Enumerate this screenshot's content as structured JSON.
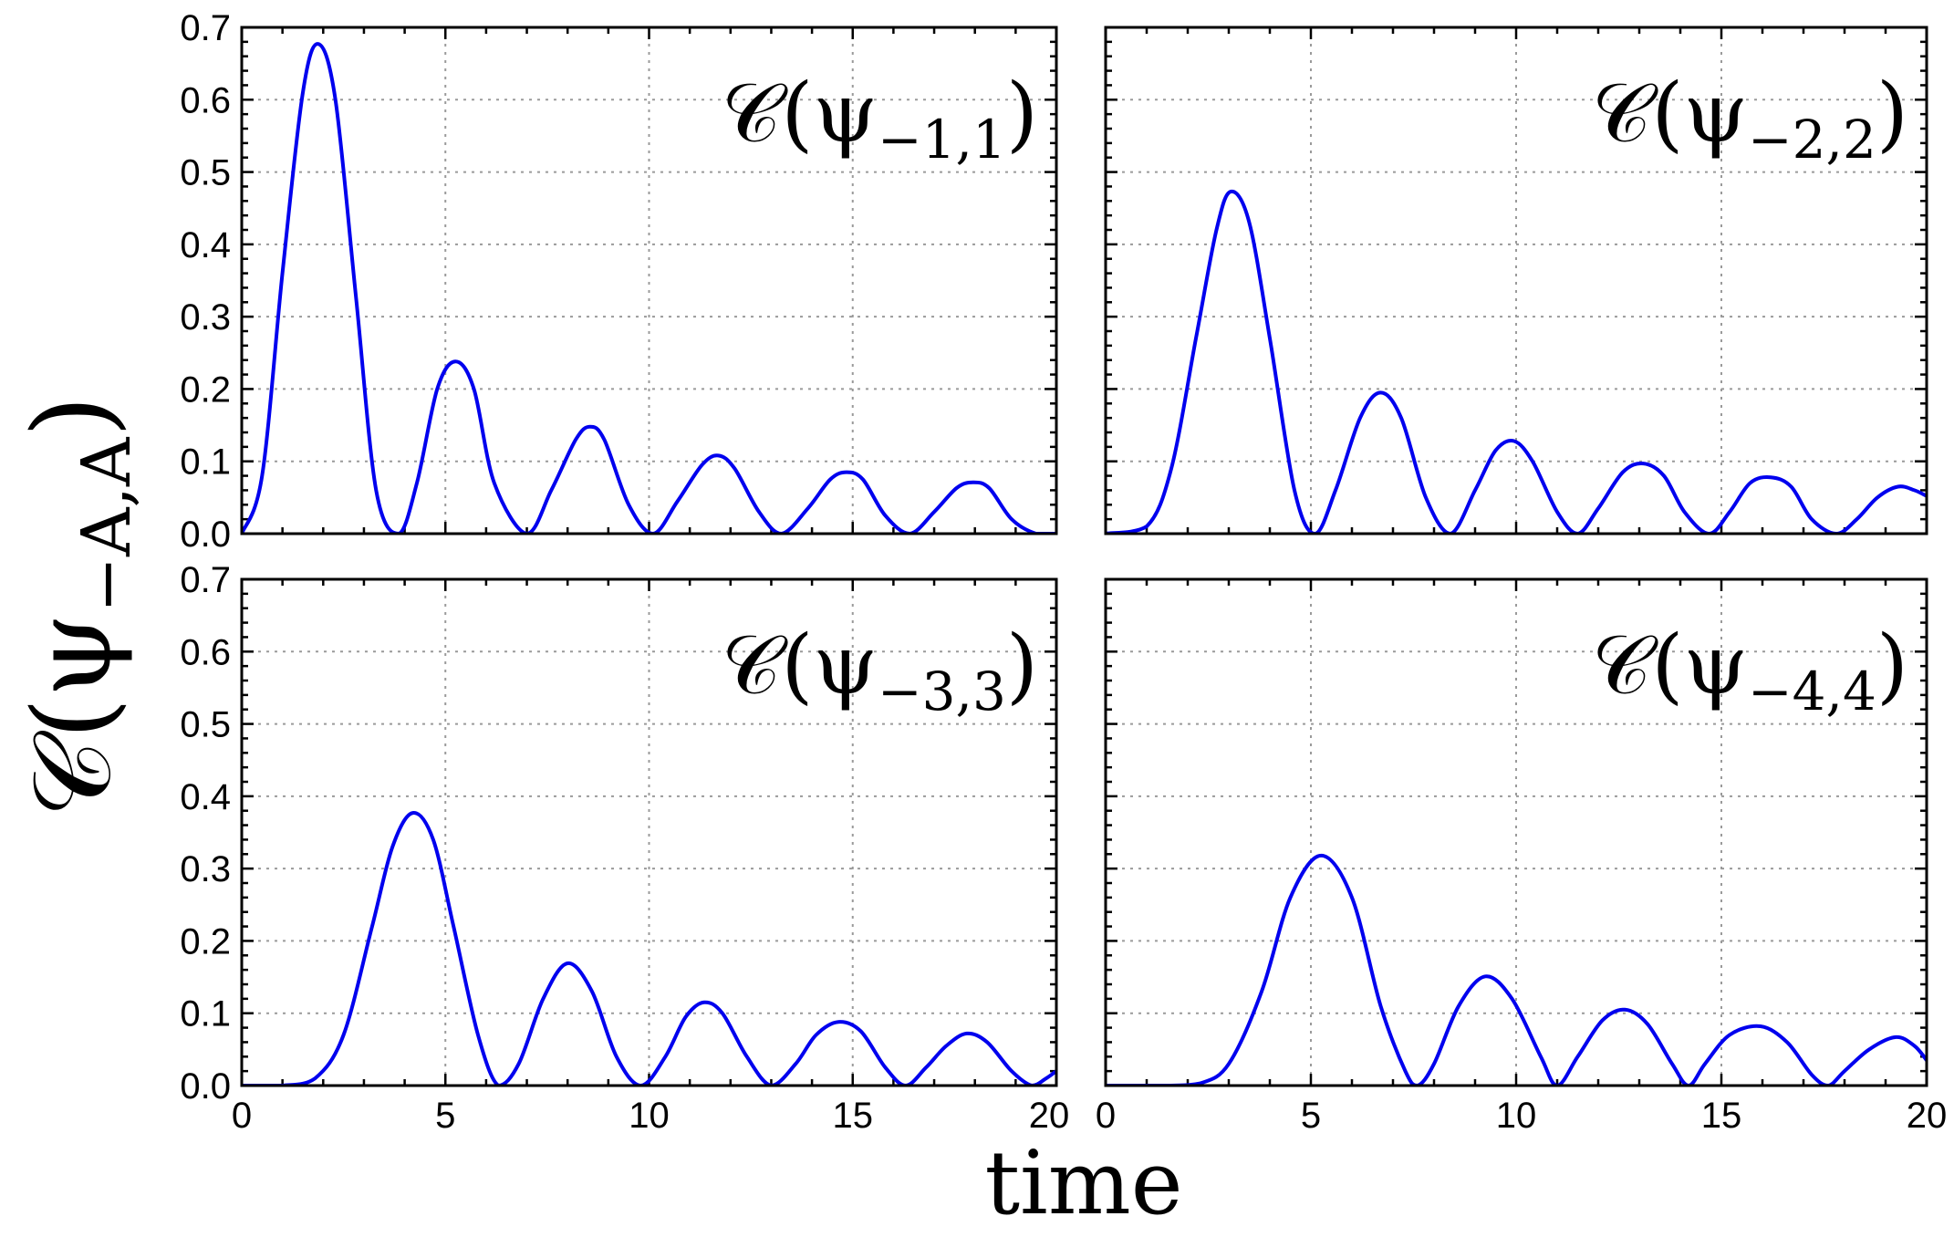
{
  "chart_data": {
    "type": "line",
    "ylabel_main": "𝒞(ψ",
    "ylabel_sub": "−A,A",
    "ylabel_close": ")",
    "xlabel": "time",
    "xlim": [
      0,
      20
    ],
    "ylim": [
      0,
      0.7
    ],
    "x_ticks": [
      0,
      5,
      10,
      15,
      20
    ],
    "x_tick_labels": [
      "0",
      "5",
      "10",
      "15",
      "20"
    ],
    "y_ticks": [
      0,
      0.1,
      0.2,
      0.3,
      0.4,
      0.5,
      0.6,
      0.7
    ],
    "y_tick_labels": [
      "0.0",
      "0.1",
      "0.2",
      "0.3",
      "0.4",
      "0.5",
      "0.6",
      "0.7"
    ],
    "grid": true,
    "series_color": "#0000ee",
    "panels": [
      {
        "label_main": "𝒞(ψ",
        "label_sub": "−1,1",
        "label_close": ")",
        "x": [
          0,
          0.5,
          1.0,
          1.5,
          1.88,
          2.3,
          2.8,
          3.3,
          3.85,
          4.3,
          4.8,
          5.25,
          5.7,
          6.2,
          7.0,
          7.6,
          8.2,
          8.55,
          8.9,
          9.5,
          10.1,
          10.7,
          11.3,
          11.7,
          12.1,
          12.7,
          13.25,
          13.9,
          14.45,
          14.85,
          15.25,
          15.8,
          16.4,
          17.0,
          17.55,
          17.95,
          18.35,
          18.9,
          19.5,
          20.0
        ],
        "values": [
          0,
          0.08,
          0.36,
          0.61,
          0.677,
          0.6,
          0.33,
          0.06,
          0,
          0.07,
          0.2,
          0.238,
          0.2,
          0.07,
          0,
          0.06,
          0.13,
          0.148,
          0.13,
          0.04,
          0,
          0.045,
          0.095,
          0.108,
          0.09,
          0.03,
          0,
          0.035,
          0.075,
          0.085,
          0.075,
          0.025,
          0,
          0.03,
          0.063,
          0.071,
          0.063,
          0.02,
          0,
          0
        ]
      },
      {
        "label_main": "𝒞(ψ",
        "label_sub": "−2,2",
        "label_close": ")",
        "x": [
          0,
          1.0,
          1.6,
          2.2,
          2.7,
          3.05,
          3.5,
          4.0,
          4.6,
          5.1,
          5.6,
          6.2,
          6.7,
          7.2,
          7.8,
          8.4,
          9.0,
          9.5,
          9.95,
          10.4,
          11.0,
          11.5,
          12.0,
          12.6,
          13.1,
          13.6,
          14.1,
          14.7,
          15.2,
          15.7,
          16.2,
          16.7,
          17.2,
          17.8,
          18.3,
          18.8,
          19.3,
          19.7,
          20.0
        ],
        "values": [
          0,
          0.01,
          0.09,
          0.27,
          0.42,
          0.473,
          0.43,
          0.27,
          0.06,
          0,
          0.06,
          0.16,
          0.195,
          0.16,
          0.05,
          0,
          0.06,
          0.115,
          0.128,
          0.1,
          0.03,
          0,
          0.035,
          0.085,
          0.097,
          0.08,
          0.03,
          0,
          0.03,
          0.07,
          0.078,
          0.065,
          0.02,
          0,
          0.02,
          0.05,
          0.065,
          0.06,
          0.052
        ]
      },
      {
        "label_main": "𝒞(ψ",
        "label_sub": "−3,3",
        "label_close": ")",
        "x": [
          0,
          1.0,
          1.8,
          2.5,
          3.2,
          3.7,
          4.2,
          4.7,
          5.2,
          5.8,
          6.3,
          6.8,
          7.4,
          8.0,
          8.6,
          9.2,
          9.8,
          10.4,
          10.9,
          11.35,
          11.8,
          12.4,
          13.0,
          13.6,
          14.1,
          14.65,
          15.2,
          15.8,
          16.3,
          16.8,
          17.3,
          17.8,
          18.3,
          18.9,
          19.4,
          19.75,
          20.0
        ],
        "values": [
          0,
          0,
          0.01,
          0.07,
          0.22,
          0.33,
          0.377,
          0.34,
          0.22,
          0.07,
          0,
          0.03,
          0.12,
          0.169,
          0.13,
          0.04,
          0,
          0.04,
          0.095,
          0.115,
          0.1,
          0.04,
          0,
          0.03,
          0.07,
          0.088,
          0.075,
          0.025,
          0,
          0.025,
          0.055,
          0.072,
          0.06,
          0.02,
          0,
          0.01,
          0.02
        ]
      },
      {
        "label_main": "𝒞(ψ",
        "label_sub": "−4,4",
        "label_close": ")",
        "x": [
          0,
          1.5,
          2.3,
          3.0,
          3.8,
          4.5,
          5.25,
          6.0,
          6.7,
          7.3,
          7.6,
          8.0,
          8.6,
          9.25,
          9.9,
          10.6,
          11.0,
          11.5,
          12.1,
          12.65,
          13.2,
          13.8,
          14.2,
          14.6,
          15.2,
          15.95,
          16.6,
          17.2,
          17.6,
          18.0,
          18.6,
          19.25,
          19.7,
          20.0
        ],
        "values": [
          0,
          0,
          0.003,
          0.03,
          0.13,
          0.26,
          0.318,
          0.26,
          0.11,
          0.02,
          0,
          0.03,
          0.11,
          0.151,
          0.12,
          0.04,
          0,
          0.04,
          0.09,
          0.105,
          0.085,
          0.03,
          0,
          0.03,
          0.07,
          0.082,
          0.06,
          0.015,
          0,
          0.02,
          0.05,
          0.067,
          0.055,
          0.035
        ]
      }
    ]
  }
}
